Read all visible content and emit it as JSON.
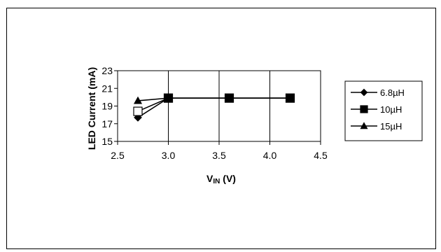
{
  "chart_data": {
    "type": "line",
    "xlabel_main": "V",
    "xlabel_sub": "IN",
    "xlabel_unit": " (V)",
    "ylabel": "LED Current (mA)",
    "xlim": [
      2.5,
      4.5
    ],
    "ylim": [
      15,
      23
    ],
    "x_ticks": [
      "2.5",
      "3.0",
      "3.5",
      "4.0",
      "4.5"
    ],
    "y_ticks": [
      "15",
      "17",
      "19",
      "21",
      "23"
    ],
    "x_tick_values": [
      2.5,
      3.0,
      3.5,
      4.0,
      4.5
    ],
    "y_tick_values": [
      15,
      17,
      19,
      21,
      23
    ],
    "grid": "vertical",
    "legend_position": "right",
    "series": [
      {
        "name": "6.8µH",
        "marker": "diamond",
        "x": [
          2.7,
          3.0,
          3.6,
          4.2
        ],
        "y": [
          17.7,
          19.9,
          19.9,
          19.9
        ]
      },
      {
        "name": "10µH",
        "marker": "square",
        "x": [
          2.7,
          3.0,
          3.6,
          4.2
        ],
        "y": [
          18.4,
          19.9,
          19.9,
          19.9
        ]
      },
      {
        "name": "15µH",
        "marker": "triangle",
        "x": [
          2.7,
          3.0,
          3.6,
          4.2
        ],
        "y": [
          19.6,
          19.9,
          19.9,
          19.9
        ]
      }
    ]
  }
}
